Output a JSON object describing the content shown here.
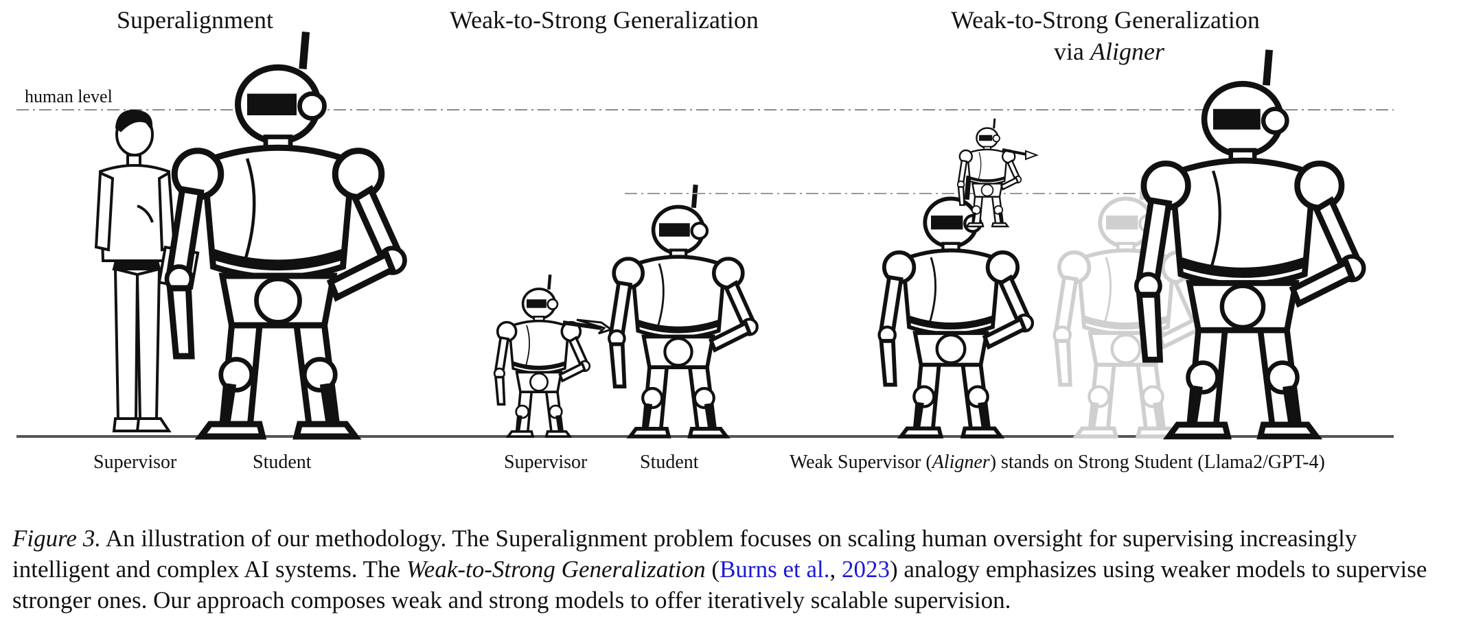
{
  "panels": {
    "superalignment": {
      "title": "Superalignment",
      "reference_label": "human level",
      "supervisor_label": "Supervisor",
      "student_label": "Student"
    },
    "w2s": {
      "title": "Weak-to-Strong Generalization",
      "supervisor_label": "Supervisor",
      "student_label": "Student"
    },
    "aligner": {
      "title_line1": "Weak-to-Strong Generalization",
      "title_line2_prefix": "via ",
      "title_line2_italic": "Aligner",
      "bottom_pre": "Weak Supervisor (",
      "bottom_italic": "Aligner",
      "bottom_post": ") stands on Strong Student (Llama2/GPT-4)"
    }
  },
  "caption": {
    "figure_label": "Figure 3.",
    "part1": " An illustration of our methodology. The Superalignment problem focuses on scaling human oversight for supervising increasingly intelligent and complex AI systems. The ",
    "italic_term": "Weak-to-Strong Generalization",
    "part2": " (",
    "cite_author": "Burns et al.",
    "cite_sep": ", ",
    "cite_year": "2023",
    "part3": ") analogy emphasizes using weaker models to supervise stronger ones. Our approach composes weak and strong models to offer iteratively scalable supervision."
  },
  "colors": {
    "link": "#1a1ad6",
    "ink": "#111111",
    "faded": "#c8c8c8",
    "guide": "#999999"
  },
  "icons": [
    "human-figure",
    "robot-figure",
    "pointing-arrow"
  ]
}
